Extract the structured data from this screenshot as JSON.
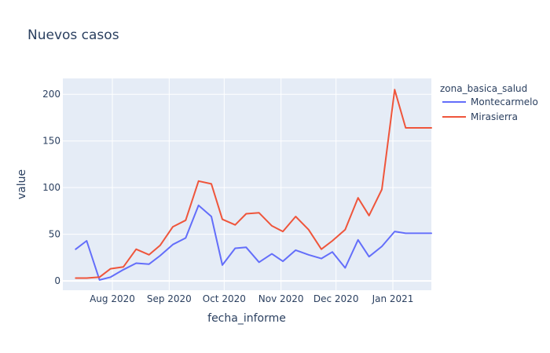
{
  "chart_data": {
    "type": "line",
    "title": "Nuevos casos",
    "xlabel": "fecha_informe",
    "ylabel": "value",
    "legend_title": "zona_basica_salud",
    "legend_position": "right",
    "grid": true,
    "x_ticks": [
      "Aug 2020",
      "Sep 2020",
      "Oct 2020",
      "Nov 2020",
      "Dec 2020",
      "Jan 2021"
    ],
    "x_tick_dates": [
      "2020-08-01",
      "2020-09-01",
      "2020-10-01",
      "2020-11-01",
      "2020-12-01",
      "2021-01-01"
    ],
    "y_ticks": [
      0,
      50,
      100,
      150,
      200
    ],
    "x_range": [
      "2020-07-05",
      "2021-01-22"
    ],
    "ylim": [
      -10,
      217
    ],
    "x": [
      "2020-07-12",
      "2020-07-18",
      "2020-07-25",
      "2020-07-31",
      "2020-08-07",
      "2020-08-14",
      "2020-08-21",
      "2020-08-27",
      "2020-09-03",
      "2020-09-10",
      "2020-09-17",
      "2020-09-24",
      "2020-09-30",
      "2020-10-07",
      "2020-10-13",
      "2020-10-20",
      "2020-10-27",
      "2020-11-02",
      "2020-11-09",
      "2020-11-16",
      "2020-11-23",
      "2020-11-29",
      "2020-12-06",
      "2020-12-13",
      "2020-12-19",
      "2020-12-26",
      "2021-01-02",
      "2021-01-08",
      "2021-01-15",
      "2021-01-22"
    ],
    "series": [
      {
        "name": "Montecarmelo",
        "color": "#636efa",
        "values": [
          34,
          43,
          1,
          4,
          12,
          19,
          18,
          27,
          39,
          46,
          81,
          69,
          17,
          35,
          36,
          20,
          29,
          21,
          33,
          28,
          24,
          31,
          14,
          44,
          26,
          37,
          53,
          51,
          51,
          51
        ]
      },
      {
        "name": "Mirasierra",
        "color": "#ef553b",
        "values": [
          3,
          3,
          4,
          13,
          15,
          34,
          28,
          38,
          58,
          65,
          107,
          104,
          66,
          60,
          72,
          73,
          59,
          53,
          69,
          55,
          34,
          43,
          55,
          89,
          70,
          98,
          205,
          164,
          164,
          164
        ]
      }
    ]
  }
}
